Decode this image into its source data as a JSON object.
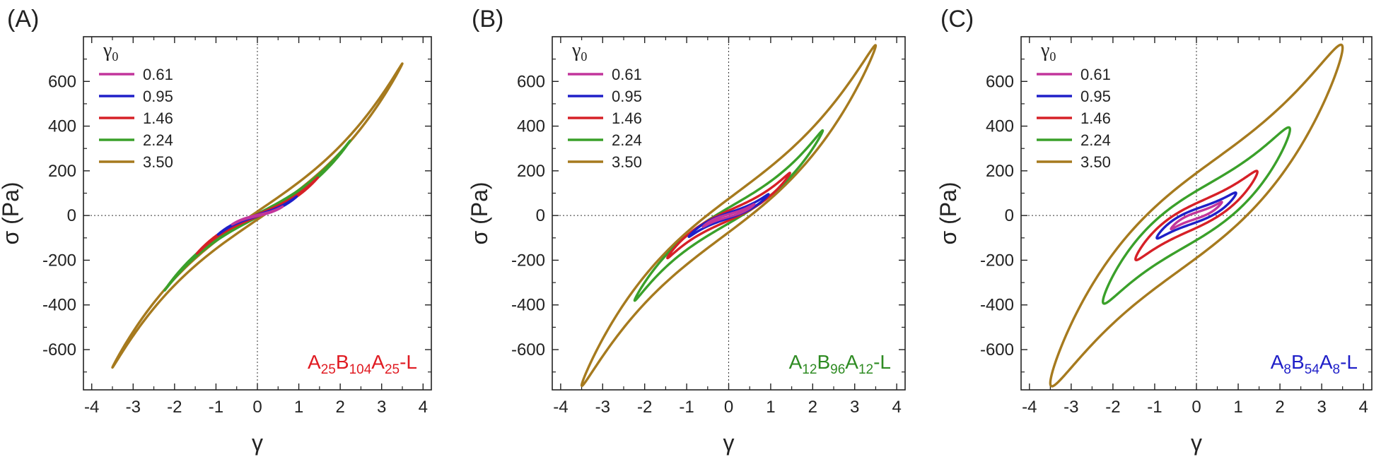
{
  "chart_data": [
    {
      "panel_label": "(A)",
      "type": "line",
      "xlabel": "γ",
      "ylabel": "σ (Pa)",
      "xlim": [
        -4.2,
        4.2
      ],
      "ylim": [
        -780,
        800
      ],
      "xticks": [
        "-4",
        "-3",
        "-2",
        "-1",
        "0",
        "1",
        "2",
        "3",
        "4"
      ],
      "yticks": [
        "-600",
        "-400",
        "-200",
        "0",
        "200",
        "400",
        "600"
      ],
      "legend_title": "γ",
      "legend_title_sub": "0",
      "legend_position": "top-left",
      "sample_label": {
        "parts": [
          [
            "A",
            ""
          ],
          [
            "25",
            "sub"
          ],
          [
            "B",
            ""
          ],
          [
            "104",
            "sub"
          ],
          [
            "A",
            ""
          ],
          [
            "25",
            "sub"
          ],
          [
            "-L",
            ""
          ]
        ],
        "color": "#e01b22"
      },
      "series": [
        {
          "name": "0.61",
          "color": "#c2359b",
          "gamma0": 0.61,
          "sigma_max": 40,
          "loop_half_width": 2
        },
        {
          "name": "0.95",
          "color": "#1f1fc8",
          "gamma0": 0.95,
          "sigma_max": 85,
          "loop_half_width": 3
        },
        {
          "name": "1.46",
          "color": "#d62027",
          "gamma0": 1.46,
          "sigma_max": 170,
          "loop_half_width": 5
        },
        {
          "name": "2.24",
          "color": "#3aa02a",
          "gamma0": 2.24,
          "sigma_max": 335,
          "loop_half_width": 7
        },
        {
          "name": "3.50",
          "color": "#a67a1e",
          "gamma0": 3.5,
          "sigma_max": 680,
          "loop_half_width": 18
        }
      ]
    },
    {
      "panel_label": "(B)",
      "type": "line",
      "xlabel": "γ",
      "ylabel": "σ (Pa)",
      "xlim": [
        -4.2,
        4.2
      ],
      "ylim": [
        -780,
        800
      ],
      "xticks": [
        "-4",
        "-3",
        "-2",
        "-1",
        "0",
        "1",
        "2",
        "3",
        "4"
      ],
      "yticks": [
        "-600",
        "-400",
        "-200",
        "0",
        "200",
        "400",
        "600"
      ],
      "legend_title": "γ",
      "legend_title_sub": "0",
      "legend_position": "top-left",
      "sample_label": {
        "parts": [
          [
            "A",
            ""
          ],
          [
            "12",
            "sub"
          ],
          [
            "B",
            ""
          ],
          [
            "96",
            "sub"
          ],
          [
            "A",
            ""
          ],
          [
            "12",
            "sub"
          ],
          [
            "-L",
            ""
          ]
        ],
        "color": "#2e8b22"
      },
      "series": [
        {
          "name": "0.61",
          "color": "#c2359b",
          "gamma0": 0.61,
          "sigma_max": 50,
          "loop_half_width": 6
        },
        {
          "name": "0.95",
          "color": "#1f1fc8",
          "gamma0": 0.95,
          "sigma_max": 95,
          "loop_half_width": 12
        },
        {
          "name": "1.46",
          "color": "#d62027",
          "gamma0": 1.46,
          "sigma_max": 190,
          "loop_half_width": 22
        },
        {
          "name": "2.24",
          "color": "#3aa02a",
          "gamma0": 2.24,
          "sigma_max": 380,
          "loop_half_width": 35
        },
        {
          "name": "3.50",
          "color": "#a67a1e",
          "gamma0": 3.5,
          "sigma_max": 760,
          "loop_half_width": 75
        }
      ]
    },
    {
      "panel_label": "(C)",
      "type": "line",
      "xlabel": "γ",
      "ylabel": "σ (Pa)",
      "xlim": [
        -4.2,
        4.2
      ],
      "ylim": [
        -780,
        800
      ],
      "xticks": [
        "-4",
        "-3",
        "-2",
        "-1",
        "0",
        "1",
        "2",
        "3",
        "4"
      ],
      "yticks": [
        "-600",
        "-400",
        "-200",
        "0",
        "200",
        "400",
        "600"
      ],
      "legend_title": "γ",
      "legend_title_sub": "0",
      "legend_position": "top-left",
      "sample_label": {
        "parts": [
          [
            "A",
            ""
          ],
          [
            "8",
            "sub"
          ],
          [
            "B",
            ""
          ],
          [
            "54",
            "sub"
          ],
          [
            "A",
            ""
          ],
          [
            "8",
            "sub"
          ],
          [
            "-L",
            ""
          ]
        ],
        "color": "#1f1fc8"
      },
      "series": [
        {
          "name": "0.61",
          "color": "#c2359b",
          "gamma0": 0.61,
          "sigma_max": 60,
          "loop_half_width": 14
        },
        {
          "name": "0.95",
          "color": "#1f1fc8",
          "gamma0": 0.95,
          "sigma_max": 100,
          "loop_half_width": 30
        },
        {
          "name": "1.46",
          "color": "#d62027",
          "gamma0": 1.46,
          "sigma_max": 195,
          "loop_half_width": 55
        },
        {
          "name": "2.24",
          "color": "#3aa02a",
          "gamma0": 2.24,
          "sigma_max": 385,
          "loop_half_width": 110
        },
        {
          "name": "3.50",
          "color": "#a67a1e",
          "gamma0": 3.5,
          "sigma_max": 750,
          "loop_half_width": 190
        }
      ]
    }
  ]
}
